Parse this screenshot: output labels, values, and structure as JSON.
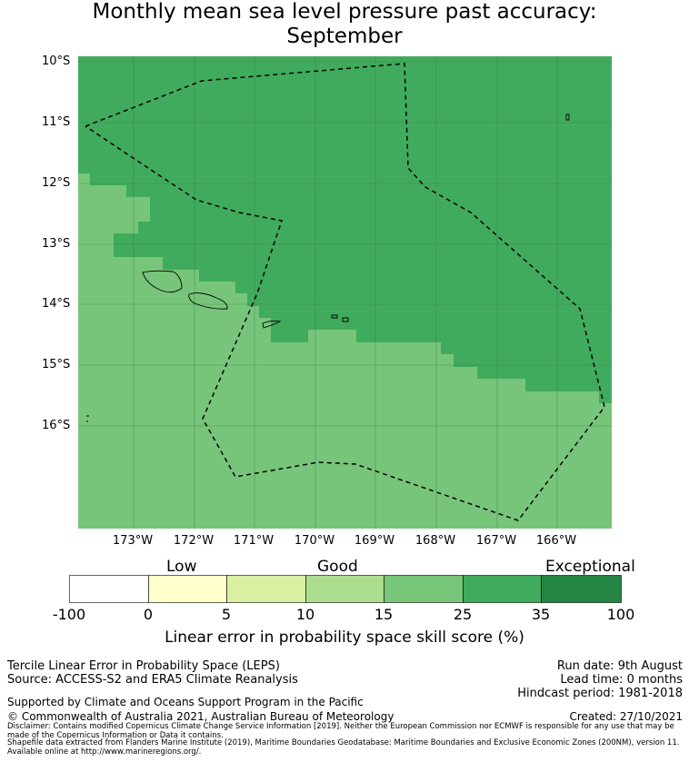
{
  "title": "Monthly mean sea level pressure past accuracy:",
  "subtitle": "September",
  "map": {
    "lat_labels": [
      "10°S",
      "11°S",
      "12°S",
      "13°S",
      "14°S",
      "15°S",
      "16°S"
    ],
    "lon_labels": [
      "173°W",
      "172°W",
      "171°W",
      "170°W",
      "169°W",
      "168°W",
      "167°W",
      "166°W"
    ],
    "colors": {
      "good_25_35": "#77c57a",
      "high_35_100": "#41ab5d"
    }
  },
  "colorbar": {
    "categories": [
      "Low",
      "Good",
      "Exceptional"
    ],
    "ticks": [
      "-100",
      "0",
      "5",
      "10",
      "15",
      "25",
      "35",
      "100"
    ],
    "colors": [
      "#ffffff",
      "#ffffcc",
      "#d9f0a3",
      "#addd8e",
      "#78c679",
      "#41ab5d",
      "#238443"
    ],
    "label": "Linear error in probability space skill score (%)"
  },
  "footer": {
    "method": "Tercile Linear Error in Probability Space (LEPS)",
    "source": "Source: ACCESS-S2 and ERA5 Climate Reanalysis",
    "run_date": "Run date: 9th August",
    "lead_time": "Lead time: 0 months",
    "hindcast": "Hindcast period: 1981-2018",
    "support": "Supported by Climate and Oceans Support Program in the Pacific",
    "copyright": "© Commonwealth of Australia 2021, Australian Bureau of Meteorology",
    "created": "Created: 27/10/2021",
    "disclaimer1": "Disclaimer: Contains modified Copernicus Climate Change Service Information [2019]. Neither the European Commission nor ECMWF is responsible for any use that may be made of the Copernicus Information or Data it contains.",
    "disclaimer2": "Shapefile data extracted from Flanders Marine Institute (2019), Maritime Boundaries Geodatabase: Maritime Boundaries and Exclusive Economic Zones (200NM), version 11. Available online at http://www.marineregions.org/."
  }
}
